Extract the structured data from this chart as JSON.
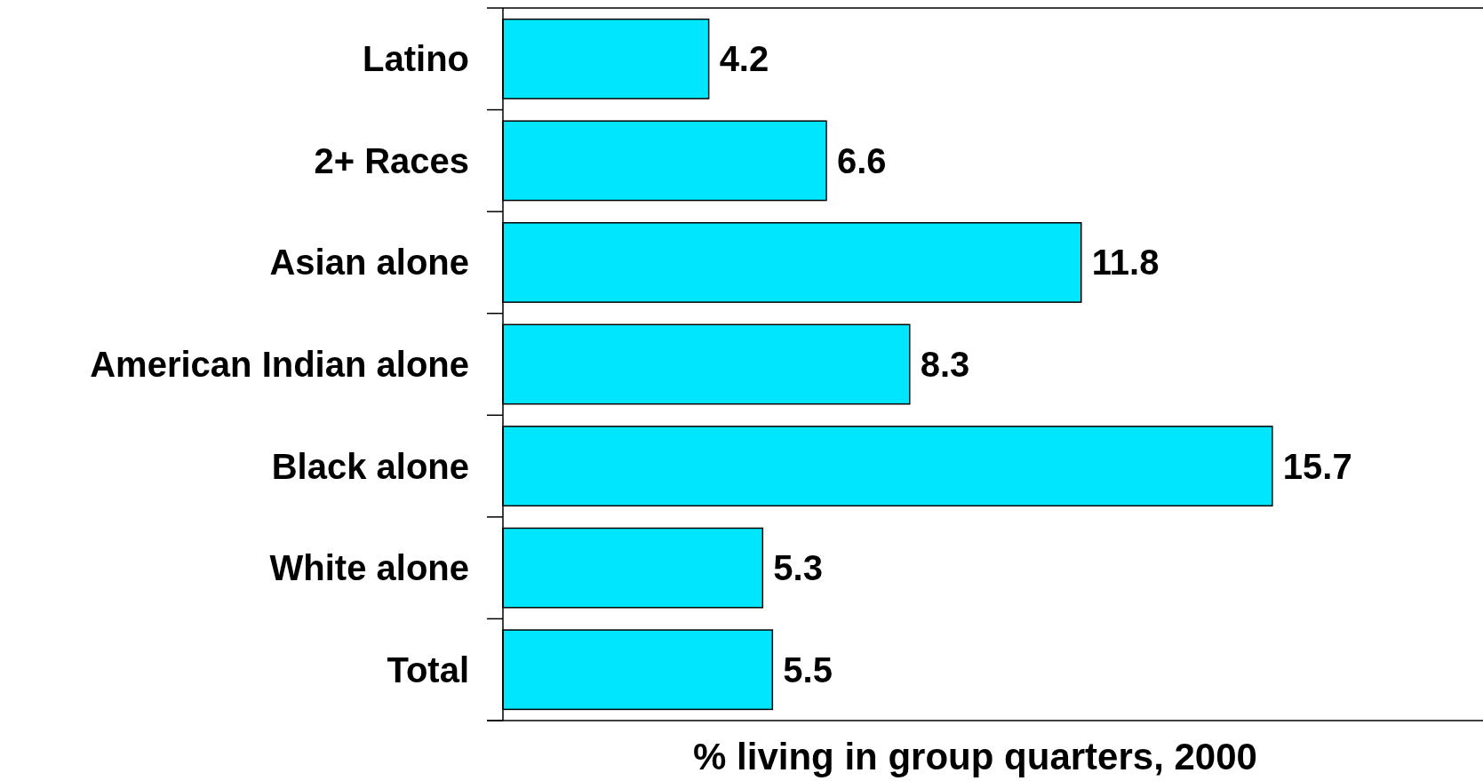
{
  "chart_data": {
    "type": "bar",
    "orientation": "horizontal",
    "xlabel": "% living in group quarters, 2000",
    "categories": [
      "Latino",
      "2+ Races",
      "Asian alone",
      "American Indian alone",
      "Black alone",
      "White alone",
      "Total"
    ],
    "values": [
      4.2,
      6.6,
      11.8,
      8.3,
      15.7,
      5.3,
      5.5
    ],
    "color": "#00e6ff",
    "xlim": [
      0,
      20
    ],
    "tick_labels": "y",
    "data_labels": true
  }
}
